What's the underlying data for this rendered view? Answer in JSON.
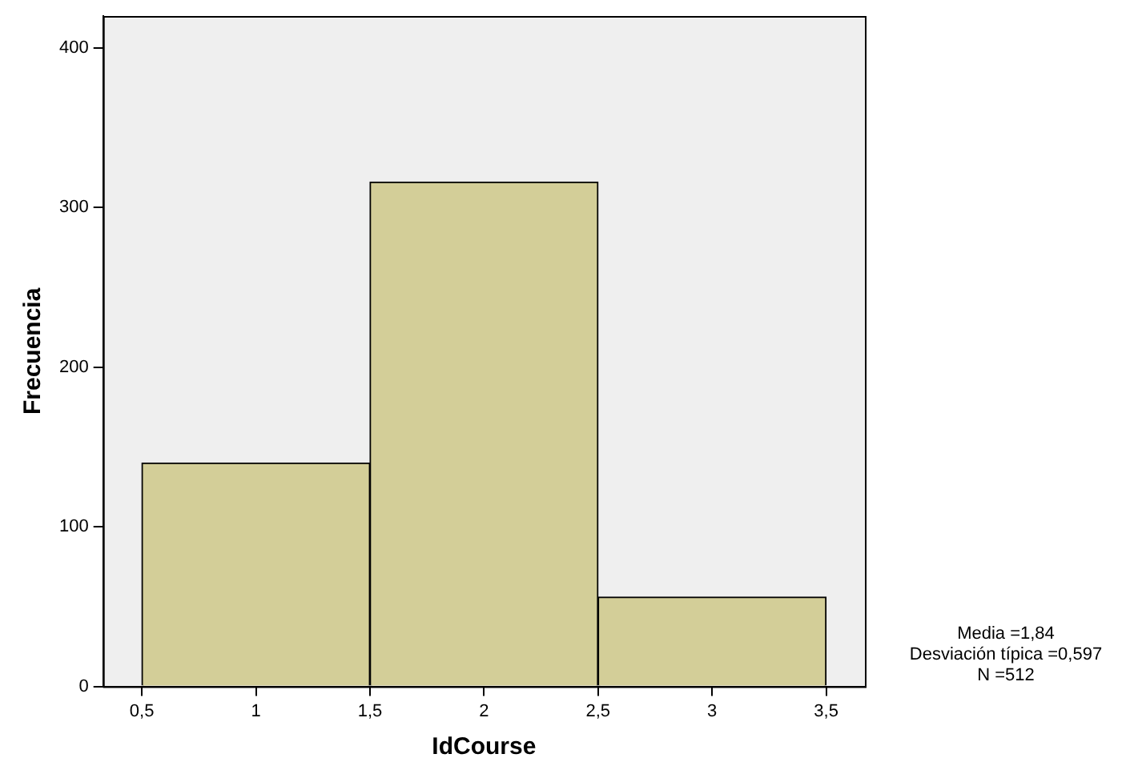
{
  "chart_data": {
    "type": "histogram",
    "xlabel": "IdCourse",
    "ylabel": "Frecuencia",
    "bins": [
      0.5,
      1.5,
      2.5,
      3.5
    ],
    "values": [
      140,
      316,
      56
    ],
    "color": "#d3ce98",
    "xlim": [
      0.33,
      3.67
    ],
    "xticks": [
      {
        "value": 0.5,
        "label": "0,5"
      },
      1,
      {
        "value": 1.5,
        "label": "1,5"
      },
      2,
      {
        "value": 2.5,
        "label": "2,5"
      },
      3,
      {
        "value": 3.5,
        "label": "3,5"
      }
    ],
    "ylim": [
      0,
      420
    ],
    "yticks": [
      0,
      100,
      200,
      300,
      400
    ],
    "grid": false,
    "legend": false,
    "annotations": [
      "Media =1,84",
      "Desviación típica =0,597",
      "N =512"
    ]
  }
}
